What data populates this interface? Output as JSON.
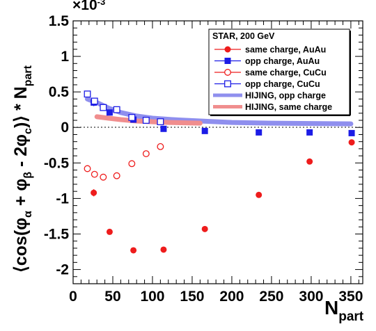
{
  "chart_data": {
    "type": "scatter",
    "xlim": [
      0,
      365
    ],
    "ylim": [
      -2.2,
      1.5
    ],
    "x_ticks": [
      "0",
      "50",
      "100",
      "150",
      "200",
      "250",
      "300",
      "350"
    ],
    "y_ticks": [
      "-2",
      "-1.5",
      "-1",
      "-0.5",
      "0",
      "0.5",
      "1",
      "1.5"
    ],
    "y_multiplier": {
      "base": "×10",
      "exp": "-3"
    },
    "xlabel": {
      "main": "N",
      "sub": "part"
    },
    "ylabel": "⟨cos(φα + φβ - 2φc)⟩ * Npart",
    "legend_title": "STAR, 200 GeV",
    "legend_position": "top-right",
    "series": [
      {
        "name": "same charge, AuAu",
        "color": "#ee1c1c",
        "marker": "filled-circle",
        "x": [
          26,
          46,
          76,
          114,
          166,
          234,
          298,
          351
        ],
        "y": [
          -0.92,
          -1.47,
          -1.73,
          -1.72,
          -1.43,
          -0.95,
          -0.48,
          -0.21
        ],
        "yerr": [
          0.05,
          0.03,
          0.02,
          0.02,
          0.02,
          0.02,
          0.02,
          0.02
        ]
      },
      {
        "name": "opp charge, AuAu",
        "color": "#1c1ce6",
        "marker": "filled-square",
        "x": [
          26,
          46,
          76,
          114,
          166,
          234,
          298,
          351
        ],
        "y": [
          0.35,
          0.21,
          0.11,
          -0.02,
          -0.05,
          -0.07,
          -0.07,
          -0.08
        ],
        "yerr": [
          0.05,
          0.03,
          0.02,
          0.02,
          0.01,
          0.01,
          0.01,
          0.01
        ]
      },
      {
        "name": "same charge, CuCu",
        "color": "#ee1c1c",
        "marker": "open-circle",
        "x": [
          18,
          27,
          38,
          55,
          74,
          92,
          110
        ],
        "y": [
          -0.58,
          -0.66,
          -0.7,
          -0.68,
          -0.51,
          -0.37,
          -0.27
        ]
      },
      {
        "name": "opp charge, CuCu",
        "color": "#1c1ce6",
        "marker": "open-square",
        "x": [
          18,
          27,
          38,
          55,
          74,
          92,
          110
        ],
        "y": [
          0.47,
          0.37,
          0.28,
          0.25,
          0.14,
          0.1,
          0.08
        ]
      },
      {
        "name": "HIJING, opp charge",
        "color": "#8f8fee",
        "marker": "band",
        "x": [
          18,
          30,
          45,
          60,
          80,
          100,
          125,
          160,
          200,
          250,
          300,
          350
        ],
        "y": [
          0.4,
          0.35,
          0.27,
          0.21,
          0.16,
          0.13,
          0.11,
          0.09,
          0.07,
          0.06,
          0.055,
          0.05
        ]
      },
      {
        "name": "HIJING, same charge",
        "color": "#f08e8e",
        "marker": "band",
        "x": [
          30,
          45,
          60,
          80,
          100,
          120,
          140,
          160
        ],
        "y": [
          0.15,
          0.13,
          0.11,
          0.09,
          0.08,
          0.07,
          0.065,
          0.06
        ]
      }
    ]
  }
}
